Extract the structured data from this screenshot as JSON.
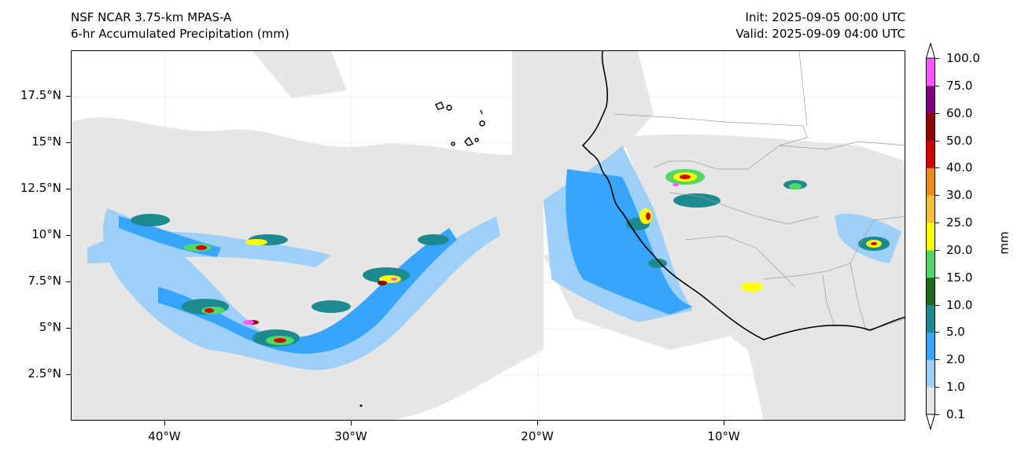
{
  "header": {
    "model": "NSF NCAR 3.75-km MPAS-A",
    "field": "6-hr Accumulated Precipitation (mm)",
    "init": "Init: 2025-09-05 00:00 UTC",
    "valid": "Valid: 2025-09-09 04:00 UTC"
  },
  "axes": {
    "lat_labels": [
      "17.5°N",
      "15°N",
      "12.5°N",
      "10°N",
      "7.5°N",
      "5°N",
      "2.5°N"
    ],
    "lon_labels": [
      "40°W",
      "30°W",
      "20°W",
      "10°W"
    ]
  },
  "colorbar": {
    "units": "mm",
    "levels": [
      "0.1",
      "1.0",
      "2.0",
      "5.0",
      "10.0",
      "15.0",
      "20.0",
      "25.0",
      "30.0",
      "40.0",
      "50.0",
      "60.0",
      "75.0",
      "100.0"
    ],
    "colors": [
      "#e6e6e6",
      "#9ecff7",
      "#36a5fb",
      "#1c8a8f",
      "#1c6b1c",
      "#52d864",
      "#ffff00",
      "#f8c02c",
      "#ee8a20",
      "#d40000",
      "#960000",
      "#800080",
      "#ff55ff"
    ]
  },
  "colors": {
    "coastline": "#000000",
    "borders": "#9a9a9a",
    "gridlines": "#eeeeee"
  }
}
